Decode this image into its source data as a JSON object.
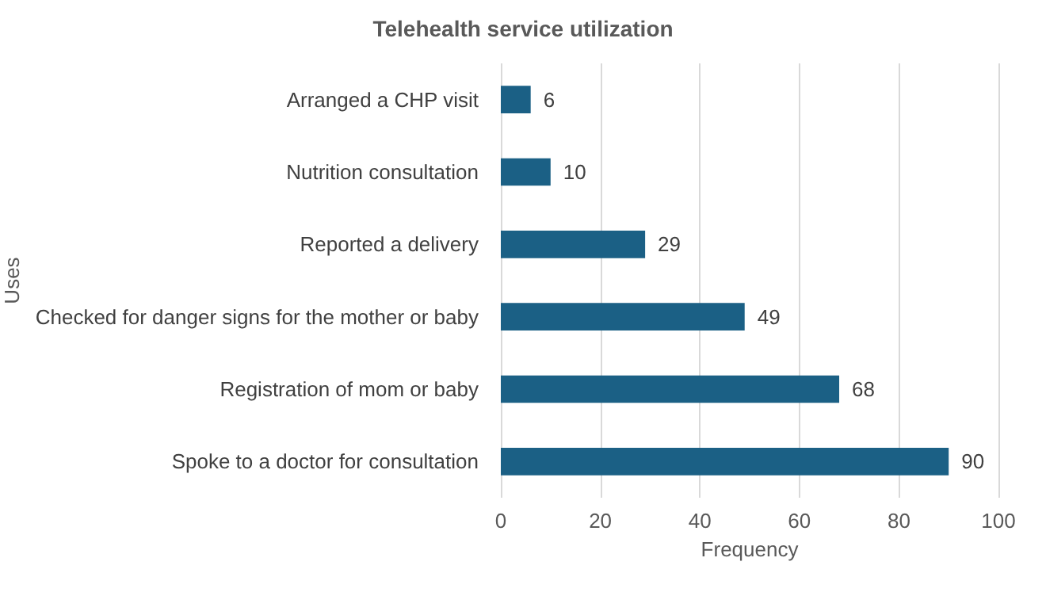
{
  "chart_data": {
    "type": "bar",
    "orientation": "horizontal",
    "title": "Telehealth service utilization",
    "xlabel": "Frequency",
    "ylabel": "Uses",
    "categories": [
      "Arranged a CHP visit",
      "Nutrition consultation",
      "Reported a delivery",
      "Checked for danger signs for the mother or baby",
      "Registration of mom or baby",
      "Spoke to a doctor for consultation"
    ],
    "values": [
      6,
      10,
      29,
      49,
      68,
      90
    ],
    "color": "#1b6085",
    "xlim": [
      0,
      100
    ],
    "xticks": [
      0,
      20,
      40,
      60,
      80,
      100
    ],
    "grid": "x",
    "data_labels": true
  }
}
